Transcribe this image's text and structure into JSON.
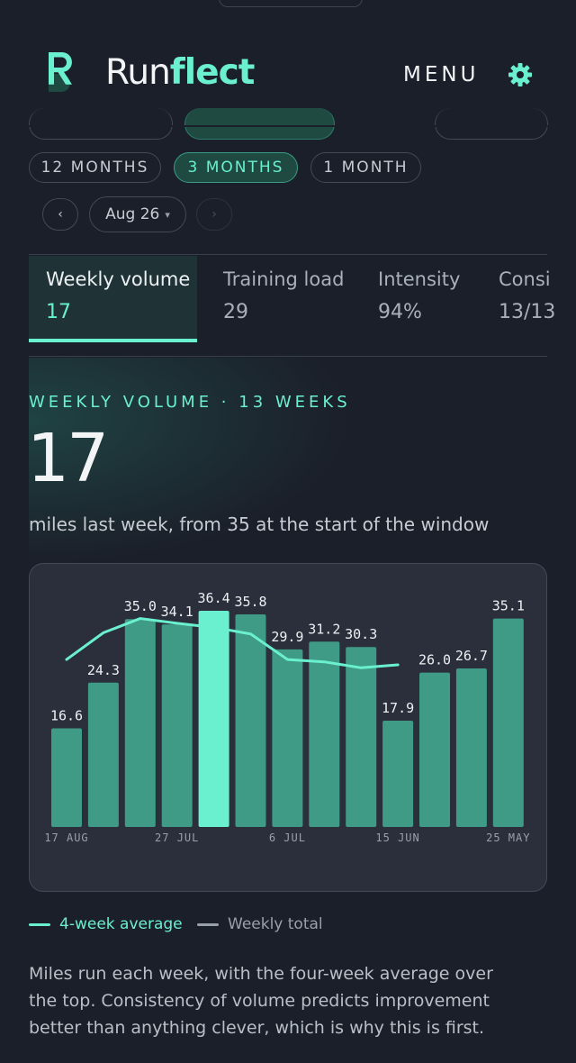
{
  "brand": {
    "name_part1": "Run",
    "name_part2": "flect",
    "logo_letter": "R"
  },
  "header": {
    "menu_label": "MENU"
  },
  "icons": {
    "settings": "gear-icon",
    "logo": "logo-icon",
    "prev": "chevron-left-icon",
    "next": "chevron-right-icon",
    "caret": "caret-down-icon"
  },
  "range_pills": [
    {
      "label": "12 MONTHS",
      "active": false
    },
    {
      "label": "3 MONTHS",
      "active": true
    },
    {
      "label": "1 MONTH",
      "active": false
    }
  ],
  "period_nav": {
    "prev_glyph": "‹",
    "next_glyph": "›",
    "current": "Aug 26",
    "caret": "▾"
  },
  "metric_tabs": [
    {
      "label": "Weekly volume",
      "value": "17",
      "active": true
    },
    {
      "label": "Training load",
      "value": "29",
      "active": false
    },
    {
      "label": "Intensity",
      "value": "94%",
      "active": false
    },
    {
      "label": "Consi",
      "value": "13/13",
      "active": false
    }
  ],
  "section": {
    "eyebrow": "WEEKLY VOLUME · 13 WEEKS",
    "big_number": "17",
    "subline": "miles last week, from 35 at the start of the window"
  },
  "chart_data": {
    "type": "bar",
    "title": "",
    "categories": [
      "",
      "",
      "",
      "",
      "",
      "",
      "",
      "",
      "",
      "",
      "",
      "",
      ""
    ],
    "x_tick_labels": [
      {
        "index": 0,
        "label": "17 AUG"
      },
      {
        "index": 3,
        "label": "27 JUL"
      },
      {
        "index": 6,
        "label": "6 JUL"
      },
      {
        "index": 9,
        "label": "15 JUN"
      },
      {
        "index": 12,
        "label": "25 MAY"
      }
    ],
    "values": [
      16.6,
      24.3,
      35.0,
      34.1,
      36.4,
      35.8,
      29.9,
      31.2,
      30.3,
      17.9,
      26.0,
      26.7,
      35.1
    ],
    "data_labels": [
      "16.6",
      "24.3",
      "35.0",
      "34.1",
      "36.4",
      "35.8",
      "29.9",
      "31.2",
      "30.3",
      "17.9",
      "26.0",
      "26.7",
      "35.1"
    ],
    "highlight_index": 4,
    "line_series": {
      "values": [
        28.2,
        32.7,
        35.1,
        34.3,
        33.6,
        32.5,
        28.2,
        27.8,
        26.8,
        27.3
      ]
    },
    "ylim": [
      0,
      36.4
    ],
    "grid": false,
    "colors": {
      "bar": "#3f9a86",
      "highlight": "#6af0cf",
      "line": "#6af0cf"
    }
  },
  "legend": {
    "avg_label": "4-week average",
    "total_label": "Weekly total"
  },
  "description": "Miles run each week, with the four-week average over the top. Consistency of volume predicts improvement better than anything clever, which is why this is first."
}
